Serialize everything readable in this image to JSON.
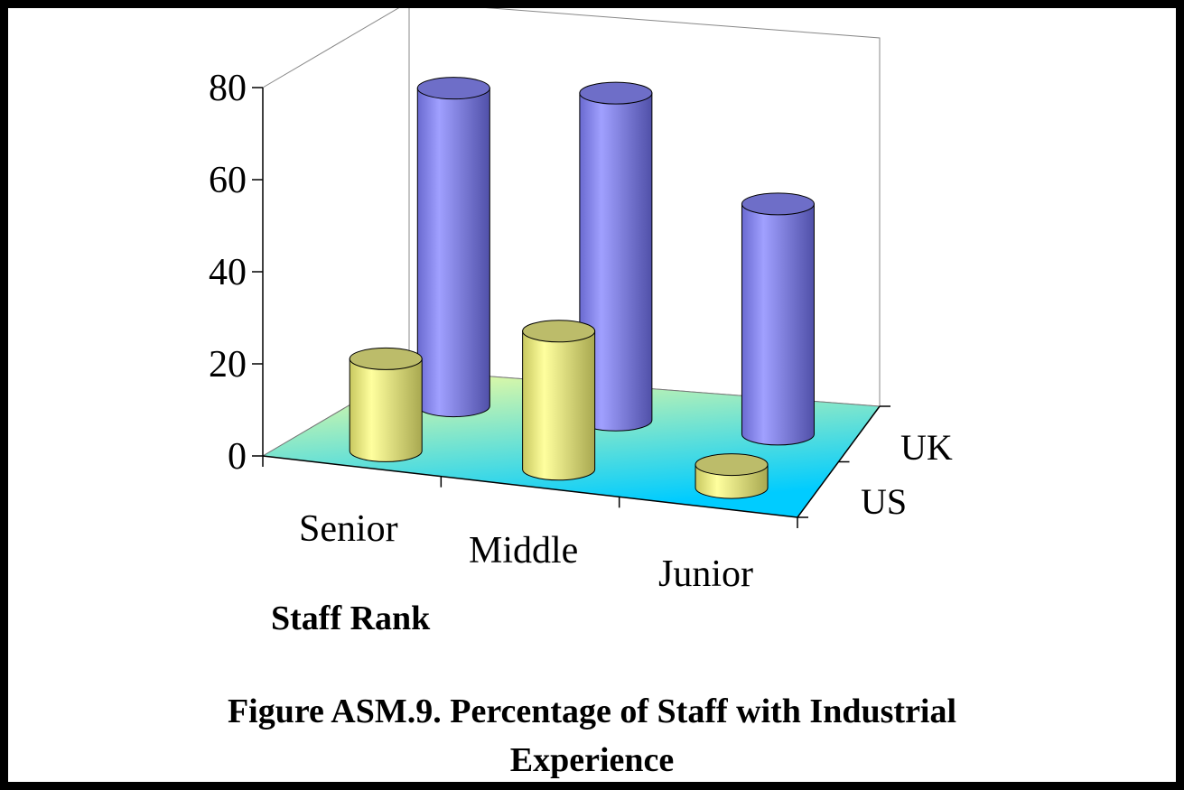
{
  "chart_data": {
    "type": "bar",
    "style": "3d-cylinder",
    "title": "",
    "xlabel": "Staff Rank",
    "ylabel": "",
    "ylim": [
      0,
      80
    ],
    "yticks": [
      "0",
      "20",
      "40",
      "60",
      "80"
    ],
    "categories": [
      "Senior",
      "Middle",
      "Junior"
    ],
    "series": [
      {
        "name": "US",
        "values": [
          20,
          30,
          5
        ],
        "color": "#ffff99"
      },
      {
        "name": "UK",
        "values": [
          69,
          71,
          50
        ],
        "color": "#9999ff"
      }
    ],
    "grid": false,
    "floor_gradient": [
      "#ffff99",
      "#00ccff"
    ]
  },
  "caption": {
    "line1": "Figure ASM.9.  Percentage of Staff with Industrial",
    "line2": "Experience"
  }
}
